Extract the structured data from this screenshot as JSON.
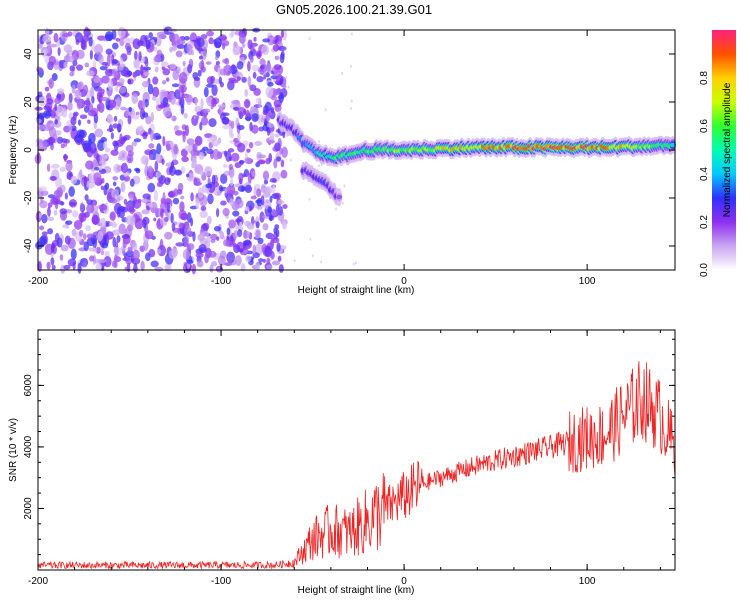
{
  "title": "GN05.2026.100.21.39.G01",
  "chart_data": [
    {
      "type": "heatmap",
      "xlabel": "Height of straight line (km)",
      "ylabel": "Frequency (Hz)",
      "xlim": [
        -200,
        148
      ],
      "ylim": [
        -50,
        50
      ],
      "xticks": [
        -200,
        -100,
        0,
        100
      ],
      "yticks": [
        -40,
        -20,
        0,
        20,
        40
      ],
      "colorbar": {
        "label": "Normalized spectral amplitude",
        "range": [
          0,
          1
        ],
        "ticks": [
          "0.0",
          "0.2",
          "0.4",
          "0.6",
          "0.8"
        ],
        "colors": [
          "#ffffff",
          "#c9a6f0",
          "#8e2ff0",
          "#3030ff",
          "#00c8ff",
          "#00ffb0",
          "#30ff30",
          "#c8ff00",
          "#ffd000",
          "#ff5000",
          "#ff2080"
        ]
      },
      "regions": {
        "noise_x_range": [
          -200,
          -65
        ],
        "noise_level": 0.2,
        "signal_ridge": [
          {
            "x": -68,
            "freq": 12,
            "amp": 0.25
          },
          {
            "x": -60,
            "freq": 8,
            "amp": 0.3
          },
          {
            "x": -55,
            "freq": 3,
            "amp": 0.35
          },
          {
            "x": -45,
            "freq": -2,
            "amp": 0.5
          },
          {
            "x": -35,
            "freq": -3,
            "amp": 0.55
          },
          {
            "x": -20,
            "freq": 0,
            "amp": 0.6
          },
          {
            "x": 0,
            "freq": 0,
            "amp": 0.65
          },
          {
            "x": 40,
            "freq": 1,
            "amp": 0.8
          },
          {
            "x": 80,
            "freq": 1,
            "amp": 0.95
          },
          {
            "x": 110,
            "freq": 1,
            "amp": 0.85
          },
          {
            "x": 148,
            "freq": 2,
            "amp": 0.5
          }
        ],
        "side_branch": [
          {
            "x": -55,
            "freq": -8,
            "amp": 0.25
          },
          {
            "x": -45,
            "freq": -13,
            "amp": 0.3
          },
          {
            "x": -35,
            "freq": -20,
            "amp": 0.2
          }
        ]
      }
    },
    {
      "type": "line",
      "xlabel": "Height of straight line (km)",
      "ylabel": "SNR (10 * v/v)",
      "xlim": [
        -200,
        148
      ],
      "ylim": [
        0,
        7800
      ],
      "xticks": [
        -200,
        -100,
        0,
        100
      ],
      "yticks": [
        2000,
        4000,
        6000
      ],
      "color": "#ee2222",
      "series": [
        {
          "name": "SNR",
          "x": [
            -200,
            -150,
            -100,
            -70,
            -60,
            -50,
            -40,
            -30,
            -20,
            -10,
            0,
            10,
            20,
            40,
            60,
            80,
            100,
            110,
            120,
            130,
            140,
            148
          ],
          "values": [
            150,
            150,
            150,
            160,
            250,
            1000,
            1300,
            1200,
            1600,
            2000,
            2400,
            2800,
            3000,
            3400,
            3700,
            4000,
            4300,
            4400,
            5000,
            5600,
            5000,
            4000
          ]
        }
      ]
    }
  ]
}
